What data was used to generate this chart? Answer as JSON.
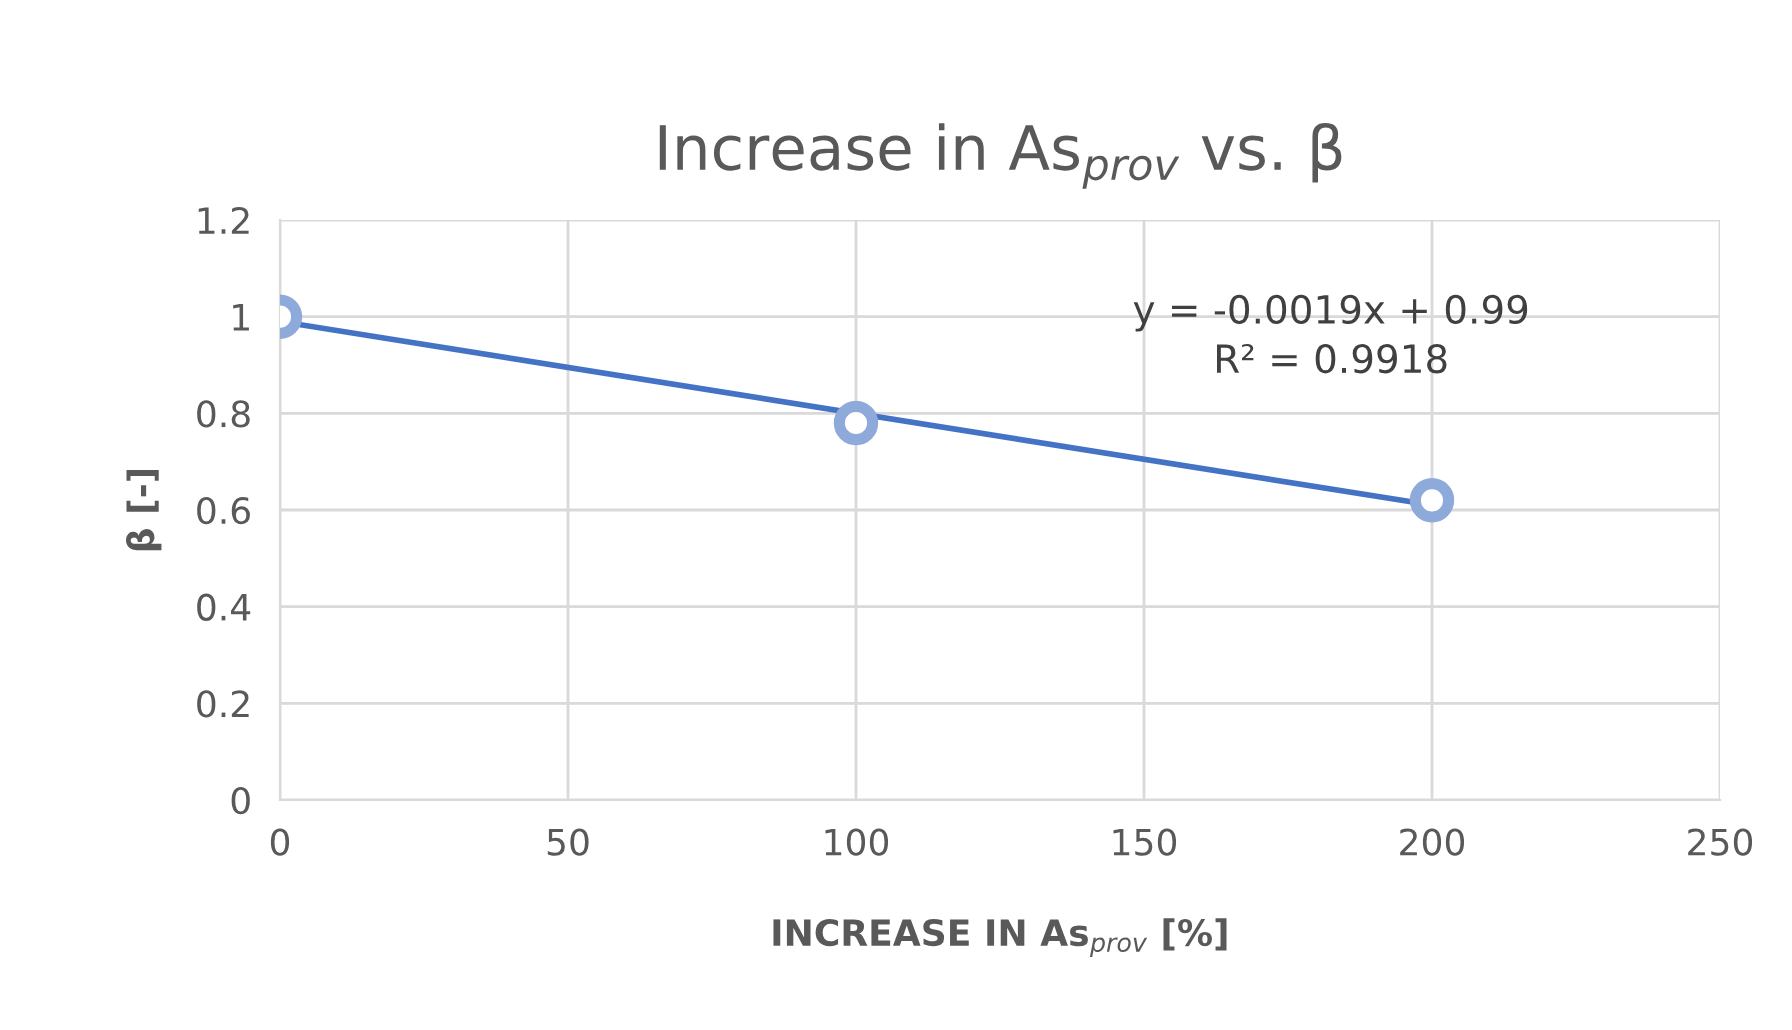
{
  "chart_data": {
    "type": "scatter",
    "title": "Increase in As$_{prov}$ vs. β",
    "xlabel": "INCREASE IN As$_{prov}$ [%]",
    "ylabel": "β [-]",
    "series": [
      {
        "color": "#8eaadb",
        "marker": "circle",
        "x": [
          0,
          100,
          200
        ],
        "values": [
          1.0,
          0.78,
          0.62
        ]
      },
      {
        "type": "line",
        "color": "#4472c4",
        "marker": "none",
        "x": [
          0,
          200
        ],
        "values": [
          0.99,
          0.61
        ]
      }
    ],
    "xlim": [
      0,
      250
    ],
    "xticks": [
      0,
      50,
      100,
      150,
      200,
      250
    ],
    "ylim": [
      0,
      1.2
    ],
    "yticks": [
      0,
      0.2,
      0.4,
      0.6,
      0.8,
      1,
      1.2
    ],
    "grid": true,
    "annotations": [
      "y = -0.0019x + 0.99",
      "R² = 0.9918"
    ]
  }
}
